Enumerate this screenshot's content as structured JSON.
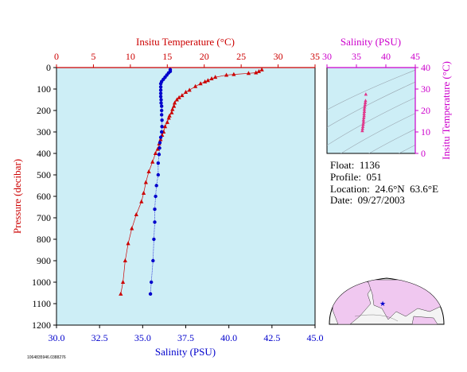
{
  "chart_data": [
    {
      "type": "line",
      "title": "",
      "x_top_label": "Insitu Temperature (°C)",
      "x_top_ticks": [
        "0",
        "5",
        "10",
        "15",
        "20",
        "25",
        "30",
        "35"
      ],
      "x_top_range": [
        0,
        35
      ],
      "x_bottom_label": "Salinity (PSU)",
      "x_bottom_ticks": [
        "30.0",
        "32.5",
        "35.0",
        "37.5",
        "40.0",
        "42.5",
        "45.0"
      ],
      "x_bottom_range": [
        30,
        45
      ],
      "ylabel": "Pressure (decibar)",
      "y_ticks": [
        "0",
        "100",
        "200",
        "300",
        "400",
        "500",
        "600",
        "700",
        "800",
        "900",
        "1000",
        "1100",
        "1200"
      ],
      "y_range": [
        0,
        1200
      ],
      "grid": false,
      "colors": {
        "temperature": "#cc0000",
        "salinity": "#0000cc",
        "background": "#cdeef6"
      },
      "series": [
        {
          "axis": "top",
          "marker": "triangle",
          "points": [
            [
              27.8,
              10
            ],
            [
              27.4,
              18
            ],
            [
              27.0,
              24
            ],
            [
              26.0,
              27
            ],
            [
              24.0,
              32
            ],
            [
              23.0,
              35
            ],
            [
              21.5,
              45
            ],
            [
              21.0,
              52
            ],
            [
              20.5,
              60
            ],
            [
              20.1,
              66
            ],
            [
              19.5,
              75
            ],
            [
              18.8,
              88
            ],
            [
              18.0,
              105
            ],
            [
              17.5,
              115
            ],
            [
              17.0,
              130
            ],
            [
              16.6,
              140
            ],
            [
              16.3,
              150
            ],
            [
              16.0,
              165
            ],
            [
              15.9,
              180
            ],
            [
              15.7,
              195
            ],
            [
              15.6,
              210
            ],
            [
              15.3,
              225
            ],
            [
              15.2,
              235
            ],
            [
              15.0,
              255
            ],
            [
              14.7,
              275
            ],
            [
              14.5,
              300
            ],
            [
              14.3,
              315
            ],
            [
              14.1,
              335
            ],
            [
              13.9,
              355
            ],
            [
              13.7,
              380
            ],
            [
              13.4,
              400
            ],
            [
              13.0,
              440
            ],
            [
              12.5,
              485
            ],
            [
              12.1,
              535
            ],
            [
              11.8,
              585
            ],
            [
              11.5,
              625
            ],
            [
              10.8,
              685
            ],
            [
              10.2,
              750
            ],
            [
              9.7,
              820
            ],
            [
              9.3,
              900
            ],
            [
              9.0,
              1000
            ],
            [
              8.7,
              1055
            ]
          ]
        },
        {
          "axis": "bottom",
          "marker": "circle",
          "points": [
            [
              36.6,
              10
            ],
            [
              36.6,
              18
            ],
            [
              36.5,
              25
            ],
            [
              36.4,
              35
            ],
            [
              36.3,
              45
            ],
            [
              36.2,
              55
            ],
            [
              36.1,
              65
            ],
            [
              36.05,
              75
            ],
            [
              36.05,
              90
            ],
            [
              36.05,
              105
            ],
            [
              36.05,
              120
            ],
            [
              36.05,
              135
            ],
            [
              36.07,
              150
            ],
            [
              36.07,
              165
            ],
            [
              36.1,
              180
            ],
            [
              36.1,
              200
            ],
            [
              36.1,
              220
            ],
            [
              36.12,
              245
            ],
            [
              36.12,
              275
            ],
            [
              36.1,
              300
            ],
            [
              36.05,
              325
            ],
            [
              36.0,
              350
            ],
            [
              35.98,
              375
            ],
            [
              35.95,
              405
            ],
            [
              35.9,
              445
            ],
            [
              35.9,
              500
            ],
            [
              35.8,
              550
            ],
            [
              35.75,
              600
            ],
            [
              35.7,
              660
            ],
            [
              35.7,
              720
            ],
            [
              35.65,
              800
            ],
            [
              35.6,
              900
            ],
            [
              35.5,
              1000
            ],
            [
              35.45,
              1055
            ]
          ]
        }
      ]
    },
    {
      "type": "scatter",
      "title": "",
      "x_label": "Salinity (PSU)",
      "x_ticks": [
        "30",
        "35",
        "40",
        "45"
      ],
      "x_range": [
        30,
        45
      ],
      "y_label": "Insitu Temperature (°C)",
      "y_ticks": [
        "0",
        "10",
        "20",
        "30",
        "40"
      ],
      "y_range": [
        0,
        40
      ],
      "colors": {
        "points": "#e0358a",
        "axes": "#cc00cc"
      },
      "points": [
        [
          36.0,
          10.5
        ],
        [
          36.05,
          11.5
        ],
        [
          36.1,
          12.5
        ],
        [
          36.15,
          13.5
        ],
        [
          36.2,
          14.5
        ],
        [
          36.2,
          15.5
        ],
        [
          36.25,
          16.5
        ],
        [
          36.3,
          17.5
        ],
        [
          36.3,
          18.5
        ],
        [
          36.35,
          19.5
        ],
        [
          36.35,
          20.5
        ],
        [
          36.4,
          21.5
        ],
        [
          36.45,
          22.5
        ],
        [
          36.5,
          23.5
        ],
        [
          36.55,
          24.5
        ],
        [
          36.6,
          27.5
        ]
      ]
    }
  ],
  "info": {
    "float": "Float:  1136",
    "profile": "Profile:  051",
    "location": "Location:  24.6°N  63.6°E",
    "date": "Date:  09/27/2003"
  },
  "footer_code": "1064835946.0388276"
}
